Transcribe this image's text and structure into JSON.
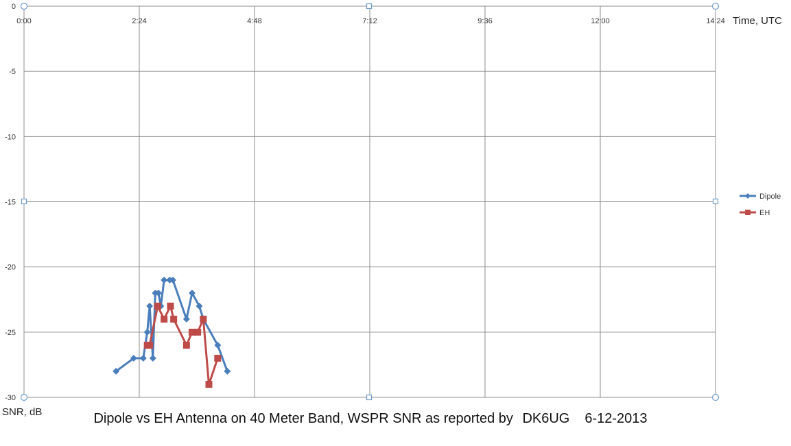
{
  "chart_data": {
    "type": "line",
    "title": "Dipole vs EH Antenna on 40 Meter Band, WSPR SNR as reported by",
    "title_callsign": "DK6UG",
    "title_date": "6-12-2013",
    "xlabel": "Time, UTC",
    "ylabel": "SNR, dB",
    "x_axis_position": "top",
    "xlim": [
      "0:00",
      "14:24"
    ],
    "ylim": [
      -30,
      0
    ],
    "x_ticks": [
      "0:00",
      "2:24",
      "4:48",
      "7:12",
      "9:36",
      "12:00",
      "14:24"
    ],
    "y_ticks": [
      "0",
      "-5",
      "-10",
      "-15",
      "-20",
      "-25",
      "-30"
    ],
    "grid": true,
    "legend_position": "right",
    "series": [
      {
        "name": "Dipole",
        "color": "#4a7ebb",
        "marker": "diamond",
        "points": [
          [
            "1:55",
            -28
          ],
          [
            "2:17",
            -27
          ],
          [
            "2:29",
            -27
          ],
          [
            "2:34",
            -25
          ],
          [
            "2:37",
            -23
          ],
          [
            "2:41",
            -27
          ],
          [
            "2:44",
            -22
          ],
          [
            "2:48",
            -22
          ],
          [
            "2:51",
            -23
          ],
          [
            "2:55",
            -21
          ],
          [
            "3:02",
            -21
          ],
          [
            "3:06",
            -21
          ],
          [
            "3:23",
            -24
          ],
          [
            "3:30",
            -22
          ],
          [
            "3:39",
            -23
          ],
          [
            "3:44",
            -24
          ],
          [
            "4:02",
            -26
          ],
          [
            "4:14",
            -28
          ]
        ]
      },
      {
        "name": "EH",
        "color": "#be4b48",
        "marker": "square",
        "points": [
          [
            "2:34",
            -26
          ],
          [
            "2:37",
            -26
          ],
          [
            "2:47",
            -23
          ],
          [
            "2:55",
            -24
          ],
          [
            "3:03",
            -23
          ],
          [
            "3:07",
            -24
          ],
          [
            "3:23",
            -26
          ],
          [
            "3:30",
            -25
          ],
          [
            "3:37",
            -25
          ],
          [
            "3:44",
            -24
          ],
          [
            "3:51",
            -29
          ],
          [
            "4:02",
            -27
          ]
        ]
      }
    ]
  }
}
